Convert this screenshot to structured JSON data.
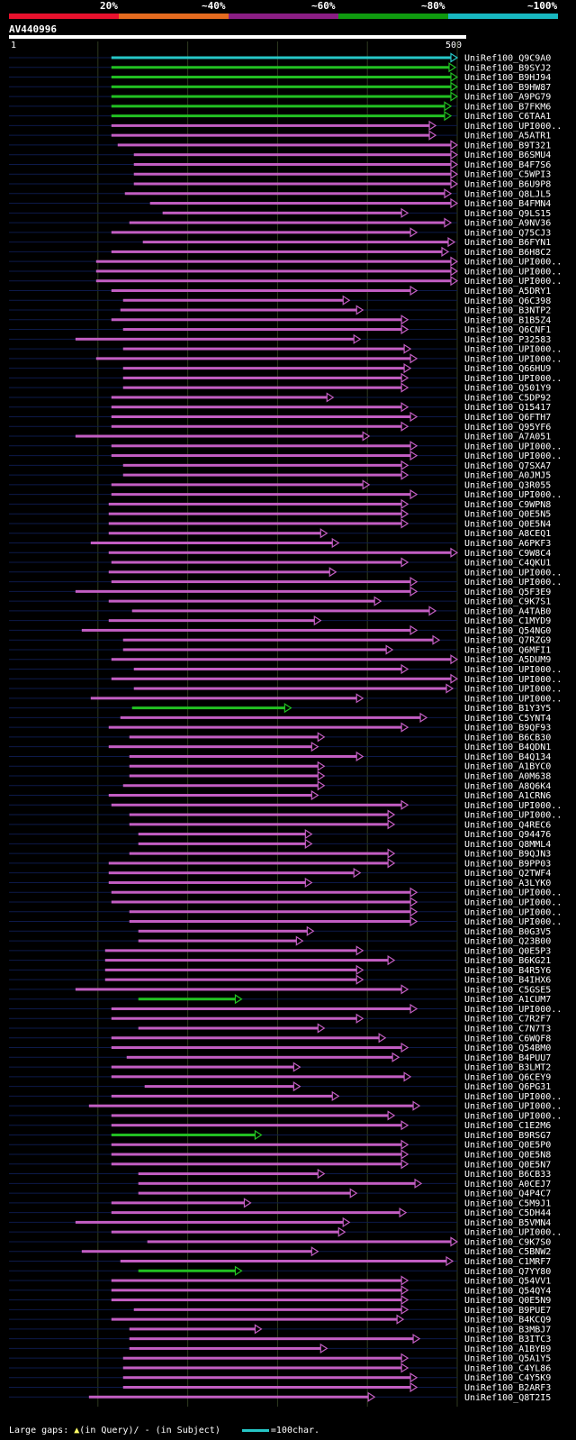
{
  "query_id": "AV440996",
  "identity_legend": [
    {
      "label": "20%",
      "color": "#e8112d"
    },
    {
      "label": "~40%",
      "color": "#e56b1f"
    },
    {
      "label": "~60%",
      "color": "#8b1e84"
    },
    {
      "label": "~80%",
      "color": "#0f9a0f"
    },
    {
      "label": "~100%",
      "color": "#18b8c0"
    }
  ],
  "axis": {
    "start_label": "1",
    "end_label": "500",
    "min": 1,
    "max": 500
  },
  "colors": {
    "purple": "#c35ec3",
    "green": "#22c022",
    "cyan": "#26c6c6",
    "gap": "#ffff66"
  },
  "footer": {
    "large_gaps": "Large gaps:",
    "in_query": "(in Query)/",
    "in_subject": "- (in Subject)",
    "scale": "=100char."
  },
  "chart_data": {
    "type": "alignment-overview",
    "title": "AV440996",
    "xlabel": "",
    "ylabel": "",
    "xlim": [
      1,
      500
    ],
    "hits": [
      {
        "name": "UniRef100_Q9C9A0",
        "start": 115,
        "end": 500,
        "color": "cyan"
      },
      {
        "name": "UniRef100_B9SYJ2",
        "start": 115,
        "end": 498,
        "color": "green"
      },
      {
        "name": "UniRef100_B9HJ94",
        "start": 115,
        "end": 500,
        "color": "green"
      },
      {
        "name": "UniRef100_B9HW87",
        "start": 115,
        "end": 500,
        "color": "green"
      },
      {
        "name": "UniRef100_A9PG79",
        "start": 115,
        "end": 500,
        "color": "green"
      },
      {
        "name": "UniRef100_B7FKM6",
        "start": 115,
        "end": 493,
        "color": "green"
      },
      {
        "name": "UniRef100_C6TAA1",
        "start": 115,
        "end": 493,
        "color": "green"
      },
      {
        "name": "UniRef100_UPI000..",
        "start": 115,
        "end": 476,
        "color": "purple"
      },
      {
        "name": "UniRef100_A5ATR1",
        "start": 115,
        "end": 476,
        "color": "purple"
      },
      {
        "name": "UniRef100_B9T321",
        "start": 122,
        "end": 500,
        "color": "purple"
      },
      {
        "name": "UniRef100_B6SMU4",
        "start": 140,
        "end": 500,
        "color": "purple"
      },
      {
        "name": "UniRef100_B4F7S6",
        "start": 140,
        "end": 500,
        "color": "purple"
      },
      {
        "name": "UniRef100_C5WPI3",
        "start": 140,
        "end": 500,
        "color": "purple"
      },
      {
        "name": "UniRef100_B6U9P8",
        "start": 140,
        "end": 500,
        "color": "purple"
      },
      {
        "name": "UniRef100_Q8LJL5",
        "start": 130,
        "end": 493,
        "color": "purple"
      },
      {
        "name": "UniRef100_B4FMN4",
        "start": 158,
        "end": 500,
        "color": "purple"
      },
      {
        "name": "UniRef100_Q9LS15",
        "start": 172,
        "end": 445,
        "color": "purple"
      },
      {
        "name": "UniRef100_A9NV36",
        "start": 135,
        "end": 493,
        "color": "purple"
      },
      {
        "name": "UniRef100_Q75CJ3",
        "start": 115,
        "end": 455,
        "color": "purple"
      },
      {
        "name": "UniRef100_B6FYN1",
        "start": 150,
        "end": 497,
        "color": "purple"
      },
      {
        "name": "UniRef100_B6H8C2",
        "start": 115,
        "end": 490,
        "color": "purple"
      },
      {
        "name": "UniRef100_UPI000..",
        "start": 98,
        "end": 500,
        "color": "purple"
      },
      {
        "name": "UniRef100_UPI000..",
        "start": 98,
        "end": 500,
        "color": "purple"
      },
      {
        "name": "UniRef100_UPI000..",
        "start": 98,
        "end": 500,
        "color": "purple"
      },
      {
        "name": "UniRef100_A5DRY1",
        "start": 115,
        "end": 455,
        "color": "purple"
      },
      {
        "name": "UniRef100_Q6C398",
        "start": 128,
        "end": 380,
        "color": "purple"
      },
      {
        "name": "UniRef100_B3NTP2",
        "start": 125,
        "end": 395,
        "color": "purple"
      },
      {
        "name": "UniRef100_B1B5Z4",
        "start": 115,
        "end": 445,
        "color": "purple"
      },
      {
        "name": "UniRef100_Q6CNF1",
        "start": 128,
        "end": 445,
        "color": "purple"
      },
      {
        "name": "UniRef100_P32583",
        "start": 75,
        "end": 392,
        "color": "purple"
      },
      {
        "name": "UniRef100_UPI000..",
        "start": 128,
        "end": 448,
        "color": "purple"
      },
      {
        "name": "UniRef100_UPI000..",
        "start": 98,
        "end": 455,
        "color": "purple"
      },
      {
        "name": "UniRef100_Q66HU9",
        "start": 128,
        "end": 448,
        "color": "purple"
      },
      {
        "name": "UniRef100_UPI000..",
        "start": 128,
        "end": 445,
        "color": "purple"
      },
      {
        "name": "UniRef100_Q501Y9",
        "start": 128,
        "end": 445,
        "color": "purple"
      },
      {
        "name": "UniRef100_C5DP92",
        "start": 115,
        "end": 362,
        "color": "purple"
      },
      {
        "name": "UniRef100_Q15417",
        "start": 115,
        "end": 445,
        "color": "purple"
      },
      {
        "name": "UniRef100_Q6FTH7",
        "start": 115,
        "end": 455,
        "color": "purple"
      },
      {
        "name": "UniRef100_Q95YF6",
        "start": 115,
        "end": 445,
        "color": "purple"
      },
      {
        "name": "UniRef100_A7A051",
        "start": 75,
        "end": 402,
        "color": "purple"
      },
      {
        "name": "UniRef100_UPI000..",
        "start": 115,
        "end": 455,
        "color": "purple"
      },
      {
        "name": "UniRef100_UPI000..",
        "start": 115,
        "end": 455,
        "color": "purple"
      },
      {
        "name": "UniRef100_Q7SXA7",
        "start": 128,
        "end": 445,
        "color": "purple"
      },
      {
        "name": "UniRef100_A0JMJ5",
        "start": 128,
        "end": 445,
        "color": "purple"
      },
      {
        "name": "UniRef100_Q3R055",
        "start": 115,
        "end": 402,
        "color": "purple"
      },
      {
        "name": "UniRef100_UPI000..",
        "start": 115,
        "end": 455,
        "color": "purple"
      },
      {
        "name": "UniRef100_C9WPN8",
        "start": 112,
        "end": 445,
        "color": "purple"
      },
      {
        "name": "UniRef100_Q0E5N5",
        "start": 112,
        "end": 445,
        "color": "purple"
      },
      {
        "name": "UniRef100_Q0E5N4",
        "start": 112,
        "end": 445,
        "color": "purple"
      },
      {
        "name": "UniRef100_A8CEQ1",
        "start": 112,
        "end": 355,
        "color": "purple"
      },
      {
        "name": "UniRef100_A6PKF3",
        "start": 92,
        "end": 368,
        "color": "purple"
      },
      {
        "name": "UniRef100_C9W8C4",
        "start": 112,
        "end": 500,
        "color": "purple"
      },
      {
        "name": "UniRef100_C4QKU1",
        "start": 115,
        "end": 445,
        "color": "purple"
      },
      {
        "name": "UniRef100_UPI000..",
        "start": 112,
        "end": 365,
        "color": "purple"
      },
      {
        "name": "UniRef100_UPI000..",
        "start": 115,
        "end": 455,
        "color": "purple"
      },
      {
        "name": "UniRef100_Q5F3E9",
        "start": 75,
        "end": 455,
        "color": "purple"
      },
      {
        "name": "UniRef100_C9K7S1",
        "start": 112,
        "end": 415,
        "color": "purple"
      },
      {
        "name": "UniRef100_A4TAB0",
        "start": 138,
        "end": 476,
        "color": "purple"
      },
      {
        "name": "UniRef100_C1MYD9",
        "start": 112,
        "end": 348,
        "color": "purple"
      },
      {
        "name": "UniRef100_Q54NG0",
        "start": 82,
        "end": 455,
        "color": "purple"
      },
      {
        "name": "UniRef100_Q7RZG9",
        "start": 128,
        "end": 480,
        "color": "purple"
      },
      {
        "name": "UniRef100_Q6MFI1",
        "start": 128,
        "end": 428,
        "color": "purple"
      },
      {
        "name": "UniRef100_A5DUM9",
        "start": 115,
        "end": 500,
        "color": "purple"
      },
      {
        "name": "UniRef100_UPI000..",
        "start": 140,
        "end": 445,
        "color": "purple"
      },
      {
        "name": "UniRef100_UPI000..",
        "start": 115,
        "end": 500,
        "color": "purple"
      },
      {
        "name": "UniRef100_UPI000..",
        "start": 140,
        "end": 495,
        "color": "purple"
      },
      {
        "name": "UniRef100_UPI000..",
        "start": 92,
        "end": 395,
        "color": "purple"
      },
      {
        "name": "UniRef100_B1Y3Y5",
        "start": 138,
        "end": 315,
        "color": "green"
      },
      {
        "name": "UniRef100_C5YNT4",
        "start": 125,
        "end": 466,
        "color": "purple"
      },
      {
        "name": "UniRef100_B9QF93",
        "start": 112,
        "end": 445,
        "color": "purple"
      },
      {
        "name": "UniRef100_B6CB30",
        "start": 135,
        "end": 352,
        "color": "purple"
      },
      {
        "name": "UniRef100_B4QDN1",
        "start": 112,
        "end": 345,
        "color": "purple"
      },
      {
        "name": "UniRef100_B4Q134",
        "start": 135,
        "end": 395,
        "color": "purple"
      },
      {
        "name": "UniRef100_A1BYC0",
        "start": 135,
        "end": 352,
        "color": "purple"
      },
      {
        "name": "UniRef100_A0M638",
        "start": 135,
        "end": 352,
        "color": "purple"
      },
      {
        "name": "UniRef100_A8Q6K4",
        "start": 128,
        "end": 352,
        "color": "purple"
      },
      {
        "name": "UniRef100_A1CRN6",
        "start": 112,
        "end": 345,
        "color": "purple"
      },
      {
        "name": "UniRef100_UPI000..",
        "start": 115,
        "end": 445,
        "color": "purple"
      },
      {
        "name": "UniRef100_UPI000..",
        "start": 135,
        "end": 430,
        "color": "purple"
      },
      {
        "name": "UniRef100_Q4REC6",
        "start": 135,
        "end": 430,
        "color": "purple"
      },
      {
        "name": "UniRef100_Q94476",
        "start": 145,
        "end": 338,
        "color": "purple"
      },
      {
        "name": "UniRef100_Q8MML4",
        "start": 145,
        "end": 338,
        "color": "purple"
      },
      {
        "name": "UniRef100_B9QJN3",
        "start": 135,
        "end": 430,
        "color": "purple"
      },
      {
        "name": "UniRef100_B9PP03",
        "start": 112,
        "end": 430,
        "color": "purple"
      },
      {
        "name": "UniRef100_Q2TWF4",
        "start": 112,
        "end": 392,
        "color": "purple"
      },
      {
        "name": "UniRef100_A3LYK0",
        "start": 112,
        "end": 338,
        "color": "purple"
      },
      {
        "name": "UniRef100_UPI000..",
        "start": 115,
        "end": 455,
        "color": "purple"
      },
      {
        "name": "UniRef100_UPI000..",
        "start": 115,
        "end": 455,
        "color": "purple"
      },
      {
        "name": "UniRef100_UPI000..",
        "start": 135,
        "end": 455,
        "color": "purple"
      },
      {
        "name": "UniRef100_UPI000..",
        "start": 135,
        "end": 455,
        "color": "purple"
      },
      {
        "name": "UniRef100_B0G3V5",
        "start": 145,
        "end": 340,
        "color": "purple"
      },
      {
        "name": "UniRef100_Q23B00",
        "start": 145,
        "end": 328,
        "color": "purple"
      },
      {
        "name": "UniRef100_Q0E5P3",
        "start": 108,
        "end": 395,
        "color": "purple"
      },
      {
        "name": "UniRef100_B6KG21",
        "start": 108,
        "end": 430,
        "color": "purple"
      },
      {
        "name": "UniRef100_B4R5Y6",
        "start": 108,
        "end": 395,
        "color": "purple"
      },
      {
        "name": "UniRef100_B4IHX6",
        "start": 108,
        "end": 395,
        "color": "purple"
      },
      {
        "name": "UniRef100_C5GSE5",
        "start": 75,
        "end": 445,
        "color": "purple"
      },
      {
        "name": "UniRef100_A1CUM7",
        "start": 145,
        "end": 260,
        "color": "green"
      },
      {
        "name": "UniRef100_UPI000..",
        "start": 115,
        "end": 455,
        "color": "purple"
      },
      {
        "name": "UniRef100_C7R2F7",
        "start": 115,
        "end": 395,
        "color": "purple"
      },
      {
        "name": "UniRef100_C7N7T3",
        "start": 145,
        "end": 352,
        "color": "purple"
      },
      {
        "name": "UniRef100_C6WQF8",
        "start": 115,
        "end": 420,
        "color": "purple"
      },
      {
        "name": "UniRef100_Q54BM0",
        "start": 115,
        "end": 445,
        "color": "purple"
      },
      {
        "name": "UniRef100_B4PUU7",
        "start": 132,
        "end": 435,
        "color": "purple"
      },
      {
        "name": "UniRef100_B3LMT2",
        "start": 115,
        "end": 325,
        "color": "purple"
      },
      {
        "name": "UniRef100_Q6CEY9",
        "start": 115,
        "end": 448,
        "color": "purple"
      },
      {
        "name": "UniRef100_Q6PG31",
        "start": 152,
        "end": 325,
        "color": "purple"
      },
      {
        "name": "UniRef100_UPI000..",
        "start": 115,
        "end": 368,
        "color": "purple"
      },
      {
        "name": "UniRef100_UPI000..",
        "start": 90,
        "end": 458,
        "color": "purple"
      },
      {
        "name": "UniRef100_UPI000..",
        "start": 115,
        "end": 430,
        "color": "purple"
      },
      {
        "name": "UniRef100_C1E2M6",
        "start": 115,
        "end": 445,
        "color": "purple"
      },
      {
        "name": "UniRef100_B9RSG7",
        "start": 115,
        "end": 282,
        "color": "green"
      },
      {
        "name": "UniRef100_Q0E5P0",
        "start": 115,
        "end": 445,
        "color": "purple"
      },
      {
        "name": "UniRef100_Q0E5N8",
        "start": 115,
        "end": 445,
        "color": "purple"
      },
      {
        "name": "UniRef100_Q0E5N7",
        "start": 115,
        "end": 445,
        "color": "purple"
      },
      {
        "name": "UniRef100_B6CB33",
        "start": 145,
        "end": 352,
        "color": "purple"
      },
      {
        "name": "UniRef100_A0CEJ7",
        "start": 145,
        "end": 460,
        "color": "purple"
      },
      {
        "name": "UniRef100_Q4P4C7",
        "start": 145,
        "end": 388,
        "color": "purple"
      },
      {
        "name": "UniRef100_C5M9J1",
        "start": 115,
        "end": 270,
        "color": "purple"
      },
      {
        "name": "UniRef100_C5DH44",
        "start": 115,
        "end": 443,
        "color": "purple"
      },
      {
        "name": "UniRef100_B5VMN4",
        "start": 75,
        "end": 380,
        "color": "purple"
      },
      {
        "name": "UniRef100_UPI000..",
        "start": 115,
        "end": 375,
        "color": "purple"
      },
      {
        "name": "UniRef100_C9K7S0",
        "start": 155,
        "end": 500,
        "color": "purple"
      },
      {
        "name": "UniRef100_C5BNW2",
        "start": 82,
        "end": 345,
        "color": "purple"
      },
      {
        "name": "UniRef100_C1MRF7",
        "start": 125,
        "end": 495,
        "color": "purple"
      },
      {
        "name": "UniRef100_Q7YY80",
        "start": 145,
        "end": 260,
        "color": "green"
      },
      {
        "name": "UniRef100_Q54VV1",
        "start": 115,
        "end": 445,
        "color": "purple"
      },
      {
        "name": "UniRef100_Q54QY4",
        "start": 115,
        "end": 445,
        "color": "purple"
      },
      {
        "name": "UniRef100_Q0E5N9",
        "start": 115,
        "end": 445,
        "color": "purple"
      },
      {
        "name": "UniRef100_B9PUE7",
        "start": 140,
        "end": 445,
        "color": "purple"
      },
      {
        "name": "UniRef100_B4KCQ9",
        "start": 115,
        "end": 440,
        "color": "purple"
      },
      {
        "name": "UniRef100_B3MBJ7",
        "start": 135,
        "end": 282,
        "color": "purple"
      },
      {
        "name": "UniRef100_B3ITC3",
        "start": 135,
        "end": 458,
        "color": "purple"
      },
      {
        "name": "UniRef100_A1BYB9",
        "start": 135,
        "end": 355,
        "color": "purple"
      },
      {
        "name": "UniRef100_Q5A1Y5",
        "start": 128,
        "end": 445,
        "color": "purple"
      },
      {
        "name": "UniRef100_C4YL86",
        "start": 128,
        "end": 445,
        "color": "purple"
      },
      {
        "name": "UniRef100_C4Y5K9",
        "start": 128,
        "end": 455,
        "color": "purple"
      },
      {
        "name": "UniRef100_B2ARF3",
        "start": 128,
        "end": 455,
        "color": "purple"
      },
      {
        "name": "UniRef100_Q8T2I5",
        "start": 90,
        "end": 408,
        "color": "purple"
      }
    ]
  }
}
